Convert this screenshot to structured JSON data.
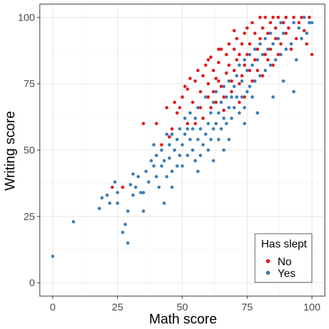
{
  "chart_data": {
    "type": "scatter",
    "title": "",
    "xlabel": "Math score",
    "ylabel": "Writing score",
    "xlim": [
      -5,
      105
    ],
    "ylim": [
      -5,
      105
    ],
    "x_ticks": [
      0,
      25,
      50,
      75,
      100
    ],
    "y_ticks": [
      0,
      25,
      50,
      75,
      100
    ],
    "grid": true,
    "legend": {
      "title": "Has slept",
      "position": "bottom-right"
    },
    "colors": {
      "No": "#e41a1c",
      "Yes": "#377eb8"
    },
    "series": [
      {
        "name": "No",
        "color": "#e41a1c",
        "points": [
          [
            23,
            36
          ],
          [
            27,
            36
          ],
          [
            35,
            60
          ],
          [
            40,
            60
          ],
          [
            42,
            52
          ],
          [
            44,
            66
          ],
          [
            45,
            55
          ],
          [
            47,
            68
          ],
          [
            48,
            64
          ],
          [
            49,
            66
          ],
          [
            50,
            70
          ],
          [
            51,
            74
          ],
          [
            52,
            73
          ],
          [
            53,
            77
          ],
          [
            54,
            68
          ],
          [
            55,
            76
          ],
          [
            56,
            80
          ],
          [
            57,
            72
          ],
          [
            57,
            66
          ],
          [
            58,
            78
          ],
          [
            59,
            82
          ],
          [
            60,
            75
          ],
          [
            60,
            70
          ],
          [
            61,
            85
          ],
          [
            62,
            80
          ],
          [
            62,
            72
          ],
          [
            63,
            77
          ],
          [
            64,
            83
          ],
          [
            64,
            76
          ],
          [
            65,
            88
          ],
          [
            65,
            74
          ],
          [
            66,
            70
          ],
          [
            67,
            86
          ],
          [
            67,
            79
          ],
          [
            68,
            90
          ],
          [
            68,
            82
          ],
          [
            69,
            76
          ],
          [
            70,
            88
          ],
          [
            70,
            80
          ],
          [
            71,
            92
          ],
          [
            71,
            84
          ],
          [
            72,
            75
          ],
          [
            72,
            86
          ],
          [
            73,
            90
          ],
          [
            73,
            78
          ],
          [
            74,
            94
          ],
          [
            74,
            82
          ],
          [
            75,
            96
          ],
          [
            75,
            86
          ],
          [
            76,
            80
          ],
          [
            76,
            90
          ],
          [
            77,
            98
          ],
          [
            78,
            84
          ],
          [
            78,
            94
          ],
          [
            79,
            88
          ],
          [
            80,
            100
          ],
          [
            80,
            92
          ],
          [
            81,
            96
          ],
          [
            82,
            86
          ],
          [
            82,
            100
          ],
          [
            83,
            94
          ],
          [
            84,
            98
          ],
          [
            84,
            88
          ],
          [
            85,
            100
          ],
          [
            86,
            92
          ],
          [
            86,
            96
          ],
          [
            87,
            100
          ],
          [
            88,
            90
          ],
          [
            89,
            98
          ],
          [
            90,
            94
          ],
          [
            90,
            100
          ],
          [
            91,
            96
          ],
          [
            92,
            88
          ],
          [
            93,
            100
          ],
          [
            94,
            92
          ],
          [
            95,
            98
          ],
          [
            96,
            100
          ],
          [
            97,
            95
          ],
          [
            98,
            90
          ],
          [
            99,
            100
          ],
          [
            100,
            86
          ],
          [
            58,
            62
          ],
          [
            63,
            68
          ],
          [
            66,
            65
          ],
          [
            69,
            72
          ],
          [
            72,
            68
          ],
          [
            55,
            60
          ],
          [
            61,
            66
          ],
          [
            46,
            58
          ],
          [
            52,
            60
          ],
          [
            74,
            70
          ],
          [
            77,
            76
          ],
          [
            79,
            80
          ],
          [
            81,
            78
          ],
          [
            83,
            84
          ],
          [
            85,
            82
          ],
          [
            87,
            86
          ],
          [
            64,
            88
          ],
          [
            60,
            84
          ],
          [
            70,
            95
          ]
        ]
      },
      {
        "name": "Yes",
        "color": "#377eb8",
        "points": [
          [
            0,
            10
          ],
          [
            8,
            23
          ],
          [
            18,
            28
          ],
          [
            19,
            32
          ],
          [
            21,
            33
          ],
          [
            22,
            30
          ],
          [
            24,
            38
          ],
          [
            25,
            30
          ],
          [
            25,
            34
          ],
          [
            27,
            19
          ],
          [
            28,
            22
          ],
          [
            29,
            15
          ],
          [
            29,
            27
          ],
          [
            30,
            37
          ],
          [
            31,
            33
          ],
          [
            32,
            36
          ],
          [
            33,
            40
          ],
          [
            34,
            34
          ],
          [
            35,
            27
          ],
          [
            36,
            42
          ],
          [
            37,
            38
          ],
          [
            38,
            46
          ],
          [
            39,
            44
          ],
          [
            40,
            48
          ],
          [
            40,
            40
          ],
          [
            41,
            36
          ],
          [
            42,
            50
          ],
          [
            42,
            44
          ],
          [
            43,
            46
          ],
          [
            44,
            56
          ],
          [
            44,
            40
          ],
          [
            45,
            52
          ],
          [
            45,
            47
          ],
          [
            46,
            42
          ],
          [
            46,
            56
          ],
          [
            47,
            50
          ],
          [
            48,
            54
          ],
          [
            48,
            44
          ],
          [
            49,
            58
          ],
          [
            49,
            48
          ],
          [
            50,
            52
          ],
          [
            50,
            44
          ],
          [
            51,
            56
          ],
          [
            51,
            62
          ],
          [
            52,
            48
          ],
          [
            52,
            58
          ],
          [
            53,
            54
          ],
          [
            53,
            64
          ],
          [
            54,
            50
          ],
          [
            54,
            58
          ],
          [
            55,
            46
          ],
          [
            55,
            62
          ],
          [
            56,
            54
          ],
          [
            56,
            66
          ],
          [
            57,
            58
          ],
          [
            57,
            48
          ],
          [
            58,
            62
          ],
          [
            58,
            52
          ],
          [
            59,
            70
          ],
          [
            59,
            56
          ],
          [
            60,
            60
          ],
          [
            60,
            50
          ],
          [
            61,
            64
          ],
          [
            61,
            54
          ],
          [
            62,
            68
          ],
          [
            62,
            58
          ],
          [
            63,
            72
          ],
          [
            63,
            60
          ],
          [
            64,
            64
          ],
          [
            64,
            54
          ],
          [
            65,
            68
          ],
          [
            65,
            58
          ],
          [
            66,
            74
          ],
          [
            66,
            62
          ],
          [
            67,
            70
          ],
          [
            67,
            60
          ],
          [
            68,
            76
          ],
          [
            68,
            66
          ],
          [
            69,
            70
          ],
          [
            69,
            62
          ],
          [
            70,
            74
          ],
          [
            70,
            66
          ],
          [
            71,
            78
          ],
          [
            71,
            70
          ],
          [
            72,
            82
          ],
          [
            72,
            64
          ],
          [
            73,
            76
          ],
          [
            73,
            70
          ],
          [
            74,
            84
          ],
          [
            74,
            66
          ],
          [
            75,
            80
          ],
          [
            75,
            72
          ],
          [
            76,
            86
          ],
          [
            76,
            74
          ],
          [
            77,
            82
          ],
          [
            77,
            70
          ],
          [
            78,
            88
          ],
          [
            78,
            76
          ],
          [
            79,
            84
          ],
          [
            80,
            90
          ],
          [
            80,
            78
          ],
          [
            81,
            86
          ],
          [
            82,
            92
          ],
          [
            82,
            80
          ],
          [
            83,
            88
          ],
          [
            84,
            94
          ],
          [
            84,
            82
          ],
          [
            85,
            90
          ],
          [
            86,
            96
          ],
          [
            86,
            84
          ],
          [
            87,
            92
          ],
          [
            88,
            98
          ],
          [
            88,
            86
          ],
          [
            89,
            94
          ],
          [
            90,
            100
          ],
          [
            90,
            88
          ],
          [
            91,
            96
          ],
          [
            92,
            90
          ],
          [
            93,
            98
          ],
          [
            94,
            84
          ],
          [
            95,
            96
          ],
          [
            96,
            92
          ],
          [
            97,
            100
          ],
          [
            98,
            94
          ],
          [
            99,
            98
          ],
          [
            100,
            98
          ],
          [
            93,
            72
          ],
          [
            89,
            76
          ],
          [
            85,
            70
          ],
          [
            79,
            64
          ],
          [
            43,
            30
          ],
          [
            35,
            34
          ],
          [
            31,
            41
          ],
          [
            39,
            52
          ],
          [
            46,
            36
          ],
          [
            56,
            42
          ],
          [
            62,
            46
          ],
          [
            68,
            54
          ],
          [
            74,
            60
          ],
          [
            66,
            50
          ]
        ]
      }
    ]
  }
}
